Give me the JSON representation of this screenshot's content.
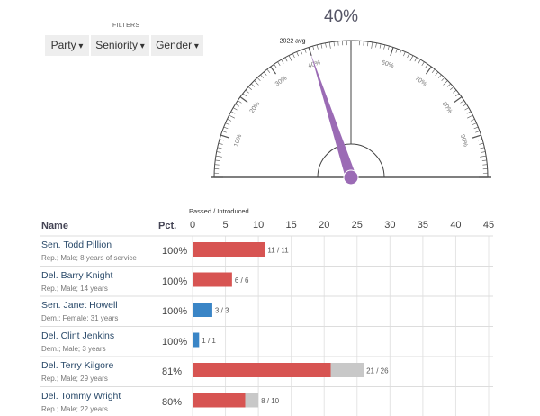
{
  "filters": {
    "label": "FILTERS",
    "buttons": [
      "Party",
      "Seniority",
      "Gender"
    ]
  },
  "gauge": {
    "value_label": "40%",
    "value": 40,
    "avg_label": "2022 avg",
    "avg_value": 40,
    "tick_labels": [
      "10%",
      "20%",
      "30%",
      "40%",
      "60%",
      "70%",
      "80%",
      "90%"
    ],
    "needle_color": "#9b6bb5"
  },
  "chart_data": {
    "type": "bar",
    "title": "Passed / Introduced",
    "xlim": [
      0,
      45
    ],
    "ticks": [
      0,
      5,
      10,
      15,
      20,
      25,
      30,
      35,
      40,
      45
    ],
    "columns": {
      "name": "Name",
      "pct": "Pct."
    },
    "rows": [
      {
        "name": "Sen. Todd Pillion",
        "detail": "Rep.; Male; 8 years of service",
        "pct": "100%",
        "passed": 11,
        "introduced": 11,
        "label": "11 / 11",
        "party": "Rep"
      },
      {
        "name": "Del. Barry Knight",
        "detail": "Rep.; Male; 14 years",
        "pct": "100%",
        "passed": 6,
        "introduced": 6,
        "label": "6 / 6",
        "party": "Rep"
      },
      {
        "name": "Sen. Janet Howell",
        "detail": "Dem.; Female; 31 years",
        "pct": "100%",
        "passed": 3,
        "introduced": 3,
        "label": "3 / 3",
        "party": "Dem"
      },
      {
        "name": "Del. Clint Jenkins",
        "detail": "Dem.; Male; 3 years",
        "pct": "100%",
        "passed": 1,
        "introduced": 1,
        "label": "1 / 1",
        "party": "Dem"
      },
      {
        "name": "Del. Terry Kilgore",
        "detail": "Rep.; Male; 29 years",
        "pct": "81%",
        "passed": 21,
        "introduced": 26,
        "label": "21 / 26",
        "party": "Rep"
      },
      {
        "name": "Del. Tommy Wright",
        "detail": "Rep.; Male; 22 years",
        "pct": "80%",
        "passed": 8,
        "introduced": 10,
        "label": "8 / 10",
        "party": "Rep"
      }
    ],
    "colors": {
      "Rep": "#d75452",
      "Dem": "#3a85c6",
      "remaining": "#c8c8c8"
    }
  }
}
